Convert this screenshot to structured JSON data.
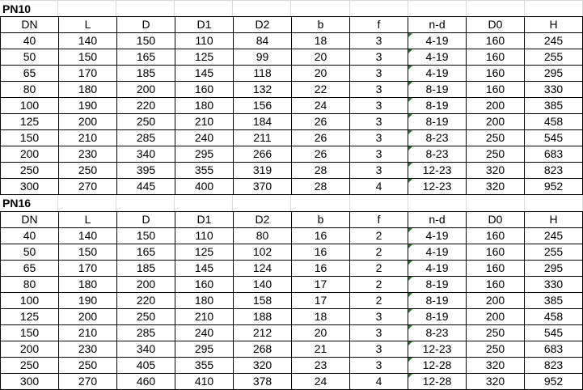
{
  "colors": {
    "table_border": "#000000",
    "gridline": "#d9d9d9",
    "error_indicator_green": "#217c21",
    "text": "#000000",
    "background": "#ffffff"
  },
  "icons": {
    "error_indicator": "green-corner-triangle"
  },
  "sections": [
    {
      "title": "PN10",
      "columns": [
        "DN",
        "L",
        "D",
        "D1",
        "D2",
        "b",
        "f",
        "n-d",
        "D0",
        "H"
      ],
      "indicator_column": 7,
      "rows": [
        [
          "40",
          "140",
          "150",
          "110",
          "84",
          "18",
          "3",
          "4-19",
          "160",
          "245"
        ],
        [
          "50",
          "150",
          "165",
          "125",
          "99",
          "20",
          "3",
          "4-19",
          "160",
          "255"
        ],
        [
          "65",
          "170",
          "185",
          "145",
          "118",
          "20",
          "3",
          "4-19",
          "160",
          "295"
        ],
        [
          "80",
          "180",
          "200",
          "160",
          "132",
          "22",
          "3",
          "8-19",
          "160",
          "330"
        ],
        [
          "100",
          "190",
          "220",
          "180",
          "156",
          "24",
          "3",
          "8-19",
          "200",
          "385"
        ],
        [
          "125",
          "200",
          "250",
          "210",
          "184",
          "26",
          "3",
          "8-19",
          "200",
          "458"
        ],
        [
          "150",
          "210",
          "285",
          "240",
          "211",
          "26",
          "3",
          "8-23",
          "250",
          "545"
        ],
        [
          "200",
          "230",
          "340",
          "295",
          "266",
          "26",
          "3",
          "8-23",
          "250",
          "683"
        ],
        [
          "250",
          "250",
          "395",
          "355",
          "319",
          "28",
          "3",
          "12-23",
          "320",
          "823"
        ],
        [
          "300",
          "270",
          "445",
          "400",
          "370",
          "28",
          "4",
          "12-23",
          "320",
          "952"
        ]
      ]
    },
    {
      "title": "PN16",
      "columns": [
        "DN",
        "L",
        "D",
        "D1",
        "D2",
        "b",
        "f",
        "n-d",
        "D0",
        "H"
      ],
      "indicator_column": 7,
      "rows": [
        [
          "40",
          "140",
          "150",
          "110",
          "80",
          "16",
          "2",
          "4-19",
          "160",
          "245"
        ],
        [
          "50",
          "150",
          "165",
          "125",
          "102",
          "16",
          "2",
          "4-19",
          "160",
          "255"
        ],
        [
          "65",
          "170",
          "185",
          "145",
          "124",
          "16",
          "2",
          "4-19",
          "160",
          "295"
        ],
        [
          "80",
          "180",
          "200",
          "160",
          "140",
          "17",
          "2",
          "8-19",
          "160",
          "330"
        ],
        [
          "100",
          "190",
          "220",
          "180",
          "158",
          "17",
          "2",
          "8-19",
          "200",
          "385"
        ],
        [
          "125",
          "200",
          "250",
          "210",
          "188",
          "18",
          "3",
          "8-19",
          "200",
          "458"
        ],
        [
          "150",
          "210",
          "285",
          "240",
          "212",
          "20",
          "3",
          "8-23",
          "250",
          "545"
        ],
        [
          "200",
          "230",
          "340",
          "295",
          "268",
          "21",
          "3",
          "12-23",
          "250",
          "683"
        ],
        [
          "250",
          "250",
          "405",
          "355",
          "320",
          "23",
          "3",
          "12-28",
          "320",
          "823"
        ],
        [
          "300",
          "270",
          "460",
          "410",
          "378",
          "24",
          "4",
          "12-28",
          "320",
          "952"
        ]
      ]
    }
  ]
}
